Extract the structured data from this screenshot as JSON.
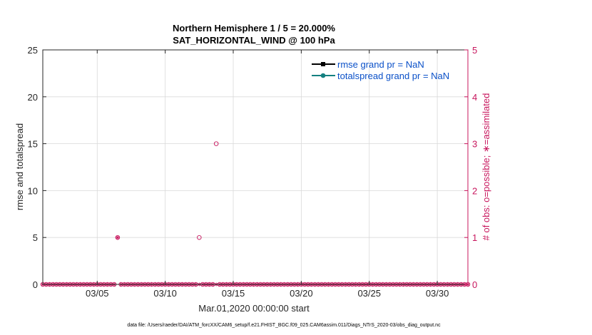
{
  "chart_data": {
    "type": "scatter",
    "title": "Northern Hemisphere 1 / 5 = 20.000%",
    "subtitle": "SAT_HORIZONTAL_WIND @ 100 hPa",
    "xlabel": "Mar.01,2020 00:00:00 start",
    "ylabel_left": "rmse and totalspread",
    "ylabel_right": "# of obs: o=possible; ∗=assimilated",
    "footer": "data file: /Users/raeder/DAI/ATM_forcXX/CAM6_setup/f.e21.FHIST_BGC.f09_025.CAM6assim.011/Diags_NTrS_2020-03/obs_diag_output.nc",
    "xlim": [
      1,
      32.25
    ],
    "ylim_left": [
      0,
      25
    ],
    "ylim_right": [
      0,
      5
    ],
    "x_ticks": [
      5,
      10,
      15,
      20,
      25,
      30
    ],
    "x_tick_labels": [
      "03/05",
      "03/10",
      "03/15",
      "03/20",
      "03/25",
      "03/30"
    ],
    "y_ticks_left": [
      "0",
      "5",
      "10",
      "15",
      "20",
      "25"
    ],
    "y_ticks_right": [
      "0",
      "1",
      "2",
      "3",
      "4",
      "5"
    ],
    "grid": true,
    "legend_position": "top-right",
    "legend": [
      "rmse grand pr = NaN",
      "totalspread grand pr = NaN"
    ],
    "obs_start_day": 1.0,
    "obs_step_days": 0.25,
    "obs_possible_counts": [
      0,
      0,
      0,
      0,
      0,
      0,
      0,
      0,
      0,
      0,
      0,
      0,
      0,
      0,
      0,
      0,
      0,
      0,
      0,
      0,
      0,
      0,
      1,
      0,
      0,
      0,
      0,
      0,
      0,
      0,
      0,
      0,
      0,
      0,
      0,
      0,
      0,
      0,
      0,
      0,
      0,
      0,
      0,
      0,
      0,
      0,
      1,
      0,
      0,
      0,
      0,
      3,
      0,
      0,
      0,
      0,
      0,
      0,
      0,
      0,
      0,
      0,
      0,
      0,
      0,
      0,
      0,
      0,
      0,
      0,
      0,
      0,
      0,
      0,
      0,
      0,
      0,
      0,
      0,
      0,
      0,
      0,
      0,
      0,
      0,
      0,
      0,
      0,
      0,
      0,
      0,
      0,
      0,
      0,
      0,
      0,
      0,
      0,
      0,
      0,
      0,
      0,
      0,
      0,
      0,
      0,
      0,
      0,
      0,
      0,
      0,
      0,
      0,
      0,
      0,
      0,
      0,
      0,
      0,
      0,
      0,
      0,
      0,
      0,
      0,
      0
    ],
    "obs_assimilated_counts": [
      0,
      0,
      0,
      0,
      0,
      0,
      0,
      0,
      0,
      0,
      0,
      0,
      0,
      0,
      0,
      0,
      0,
      0,
      0,
      0,
      0,
      0,
      1,
      0,
      0,
      0,
      0,
      0,
      0,
      0,
      0,
      0,
      0,
      0,
      0,
      0,
      0,
      0,
      0,
      0,
      0,
      0,
      0,
      0,
      0,
      0,
      0,
      0,
      0,
      0,
      0,
      0,
      0,
      0,
      0,
      0,
      0,
      0,
      0,
      0,
      0,
      0,
      0,
      0,
      0,
      0,
      0,
      0,
      0,
      0,
      0,
      0,
      0,
      0,
      0,
      0,
      0,
      0,
      0,
      0,
      0,
      0,
      0,
      0,
      0,
      0,
      0,
      0,
      0,
      0,
      0,
      0,
      0,
      0,
      0,
      0,
      0,
      0,
      0,
      0,
      0,
      0,
      0,
      0,
      0,
      0,
      0,
      0,
      0,
      0,
      0,
      0,
      0,
      0,
      0,
      0,
      0,
      0,
      0,
      0,
      0,
      0,
      0,
      0,
      0,
      0
    ],
    "colors": {
      "obs": "#c8175e",
      "rmse": "#000000",
      "totalspread": "#148080",
      "legend_text": "#0a50c8",
      "grid": "#d9d9d9",
      "axis": "#262626"
    }
  }
}
